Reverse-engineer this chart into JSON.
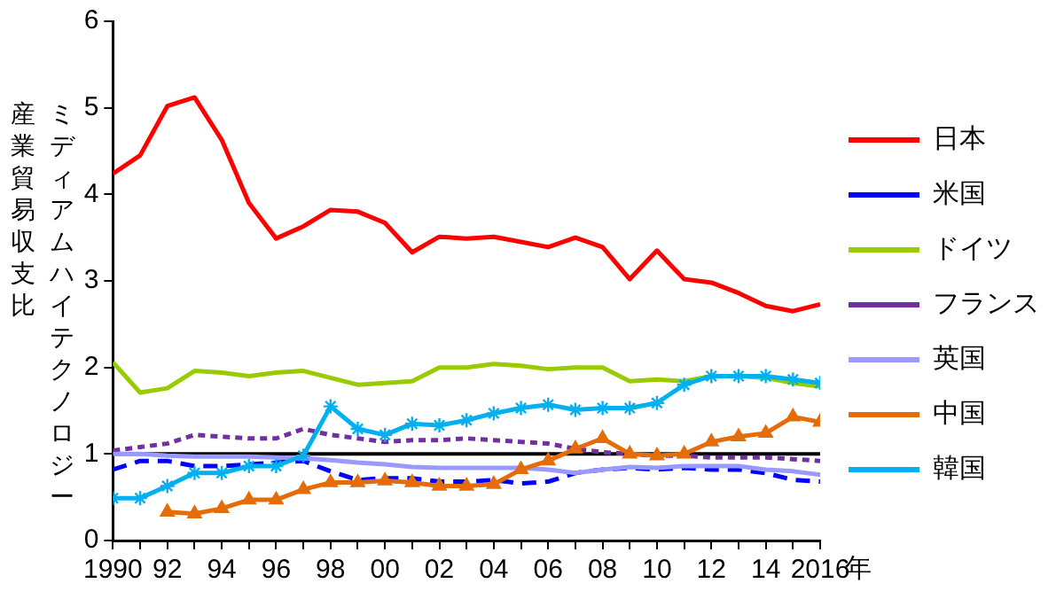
{
  "chart_data": {
    "type": "line",
    "xlabel": "年",
    "ylabel": "ミディアムハイテクノロジー産業貿易収支比",
    "x": [
      1990,
      1991,
      1992,
      1993,
      1994,
      1995,
      1996,
      1997,
      1998,
      1999,
      2000,
      2001,
      2002,
      2003,
      2004,
      2005,
      2006,
      2007,
      2008,
      2009,
      2010,
      2011,
      2012,
      2013,
      2014,
      2015,
      2016
    ],
    "series": [
      {
        "name": "日本",
        "color": "#ff0000",
        "line_style": "solid",
        "marker": "none",
        "values": [
          4.24,
          4.45,
          5.02,
          5.12,
          4.63,
          3.9,
          3.49,
          3.63,
          3.82,
          3.8,
          3.67,
          3.33,
          3.51,
          3.49,
          3.51,
          3.45,
          3.39,
          3.5,
          3.39,
          3.02,
          3.35,
          3.02,
          2.98,
          2.86,
          2.71,
          2.65,
          2.73
        ]
      },
      {
        "name": "米国",
        "color": "#0000ff",
        "line_style": "dashed",
        "marker": "none",
        "values": [
          0.82,
          0.92,
          0.92,
          0.86,
          0.86,
          0.88,
          0.9,
          0.92,
          0.8,
          0.7,
          0.72,
          0.72,
          0.68,
          0.68,
          0.7,
          0.66,
          0.68,
          0.78,
          0.82,
          0.84,
          0.82,
          0.84,
          0.82,
          0.82,
          0.78,
          0.7,
          0.68
        ]
      },
      {
        "name": "ドイツ",
        "color": "#99cc00",
        "line_style": "solid",
        "marker": "none",
        "values": [
          2.06,
          1.71,
          1.76,
          1.96,
          1.94,
          1.9,
          1.94,
          1.96,
          1.88,
          1.8,
          1.82,
          1.84,
          2.0,
          2.0,
          2.04,
          2.02,
          1.98,
          2.0,
          2.0,
          1.84,
          1.86,
          1.84,
          1.9,
          1.9,
          1.88,
          1.82,
          1.78
        ]
      },
      {
        "name": "フランス",
        "color": "#7030a0",
        "line_style": "dotted",
        "marker": "none",
        "values": [
          1.04,
          1.08,
          1.12,
          1.22,
          1.2,
          1.18,
          1.18,
          1.29,
          1.22,
          1.18,
          1.14,
          1.16,
          1.16,
          1.18,
          1.16,
          1.14,
          1.12,
          1.06,
          1.02,
          1.0,
          0.98,
          0.98,
          0.96,
          0.96,
          0.96,
          0.94,
          0.92
        ]
      },
      {
        "name": "英国",
        "color": "#9999ff",
        "line_style": "solid",
        "marker": "none",
        "values": [
          1.0,
          1.0,
          0.98,
          0.97,
          0.97,
          0.97,
          0.96,
          0.95,
          0.93,
          0.9,
          0.88,
          0.85,
          0.84,
          0.84,
          0.84,
          0.84,
          0.82,
          0.78,
          0.82,
          0.85,
          0.84,
          0.86,
          0.86,
          0.86,
          0.82,
          0.8,
          0.76
        ]
      },
      {
        "name": "中国",
        "color": "#e46c0a",
        "line_style": "solid",
        "marker": "triangle",
        "values": [
          null,
          null,
          0.33,
          0.31,
          0.37,
          0.47,
          0.47,
          0.59,
          0.67,
          0.67,
          0.69,
          0.67,
          0.63,
          0.63,
          0.65,
          0.82,
          0.92,
          1.06,
          1.18,
          1.0,
          0.98,
          1.0,
          1.14,
          1.2,
          1.24,
          1.43,
          1.37
        ]
      },
      {
        "name": "韓国",
        "color": "#00b0f0",
        "line_style": "solid",
        "marker": "cross",
        "values": [
          0.49,
          0.49,
          0.63,
          0.78,
          0.78,
          0.86,
          0.86,
          0.98,
          1.55,
          1.29,
          1.22,
          1.35,
          1.33,
          1.39,
          1.47,
          1.53,
          1.57,
          1.51,
          1.53,
          1.53,
          1.59,
          1.8,
          1.9,
          1.9,
          1.9,
          1.86,
          1.82
        ]
      }
    ],
    "ref_lines": [
      {
        "axis": "y",
        "value": 1,
        "color": "#000000"
      }
    ],
    "xlim": [
      1990,
      2016
    ],
    "xticks": [
      {
        "value": 1990,
        "label": "1990"
      },
      {
        "value": 1991,
        "label": null
      },
      {
        "value": 1992,
        "label": "92"
      },
      {
        "value": 1993,
        "label": null
      },
      {
        "value": 1994,
        "label": "94"
      },
      {
        "value": 1995,
        "label": null
      },
      {
        "value": 1996,
        "label": "96"
      },
      {
        "value": 1997,
        "label": null
      },
      {
        "value": 1998,
        "label": "98"
      },
      {
        "value": 1999,
        "label": null
      },
      {
        "value": 2000,
        "label": "00"
      },
      {
        "value": 2001,
        "label": null
      },
      {
        "value": 2002,
        "label": "02"
      },
      {
        "value": 2003,
        "label": null
      },
      {
        "value": 2004,
        "label": "04"
      },
      {
        "value": 2005,
        "label": null
      },
      {
        "value": 2006,
        "label": "06"
      },
      {
        "value": 2007,
        "label": null
      },
      {
        "value": 2008,
        "label": "08"
      },
      {
        "value": 2009,
        "label": null
      },
      {
        "value": 2010,
        "label": "10"
      },
      {
        "value": 2011,
        "label": null
      },
      {
        "value": 2012,
        "label": "12"
      },
      {
        "value": 2013,
        "label": null
      },
      {
        "value": 2014,
        "label": "14"
      },
      {
        "value": 2015,
        "label": null
      },
      {
        "value": 2016,
        "label": "2016"
      }
    ],
    "ylim": [
      0,
      6
    ],
    "yticks": [
      0,
      1,
      2,
      3,
      4,
      5,
      6
    ],
    "grid": false,
    "legend": "right"
  }
}
